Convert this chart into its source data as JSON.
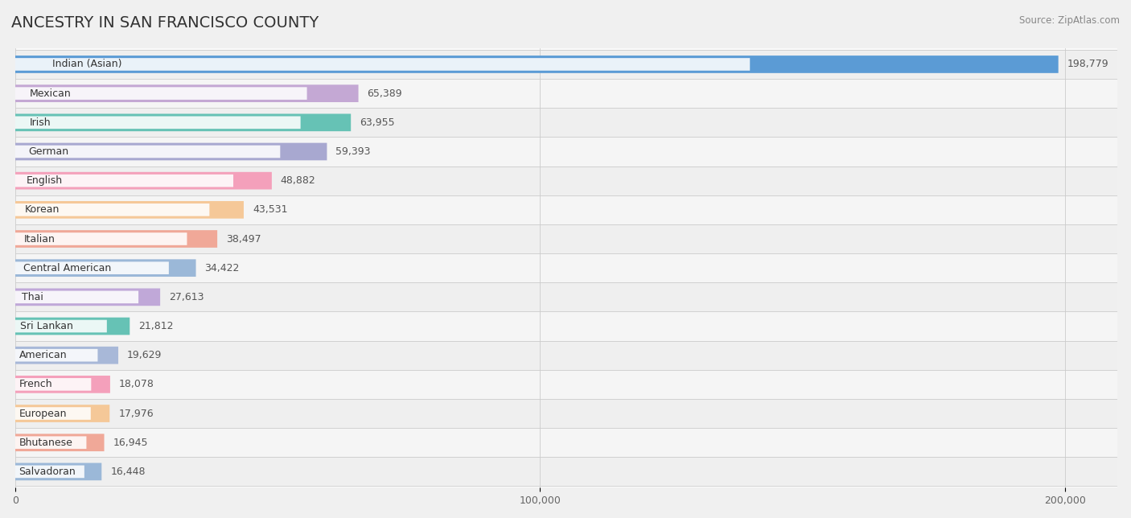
{
  "title": "ANCESTRY IN SAN FRANCISCO COUNTY",
  "source_text": "Source: ZipAtlas.com",
  "categories": [
    "Indian (Asian)",
    "Mexican",
    "Irish",
    "German",
    "English",
    "Korean",
    "Italian",
    "Central American",
    "Thai",
    "Sri Lankan",
    "American",
    "French",
    "European",
    "Bhutanese",
    "Salvadoran"
  ],
  "values": [
    198779,
    65389,
    63955,
    59393,
    48882,
    43531,
    38497,
    34422,
    27613,
    21812,
    19629,
    18078,
    17976,
    16945,
    16448
  ],
  "bar_colors": [
    "#5B9BD5",
    "#C4A8D4",
    "#66C2B5",
    "#A8A8D0",
    "#F4A0BB",
    "#F5C898",
    "#F0A898",
    "#9BB8D8",
    "#C0A8D8",
    "#66C2B5",
    "#A8B8D8",
    "#F4A0BB",
    "#F5C898",
    "#F0A898",
    "#9BB8D8"
  ],
  "row_bg_colors": [
    "#EFEFEF",
    "#F5F5F5"
  ],
  "background_color": "#F0F0F0",
  "plot_bg_color": "#FAFAFA",
  "xlim_max": 210000,
  "xticks": [
    0,
    100000,
    200000
  ],
  "xtick_labels": [
    "0",
    "100,000",
    "200,000"
  ],
  "title_fontsize": 14,
  "bar_label_fontsize": 9,
  "value_fontsize": 9
}
